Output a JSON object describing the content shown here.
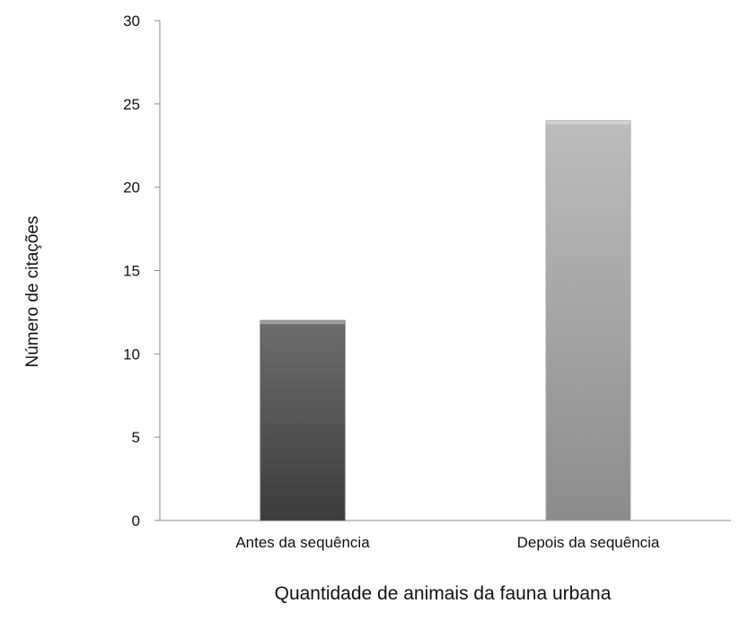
{
  "chart_data": {
    "type": "bar",
    "categories": [
      "Antes da sequência",
      "Depois da sequência"
    ],
    "values": [
      12,
      24
    ],
    "xlabel": "Quantidade de animais da fauna urbana",
    "ylabel": "Número de citações",
    "ylim": [
      0,
      30
    ],
    "yticks": [
      0,
      5,
      10,
      15,
      20,
      25,
      30
    ],
    "grid": false,
    "legend": "none",
    "colors": [
      "#5a5a5a",
      "#a8a8a8"
    ]
  }
}
